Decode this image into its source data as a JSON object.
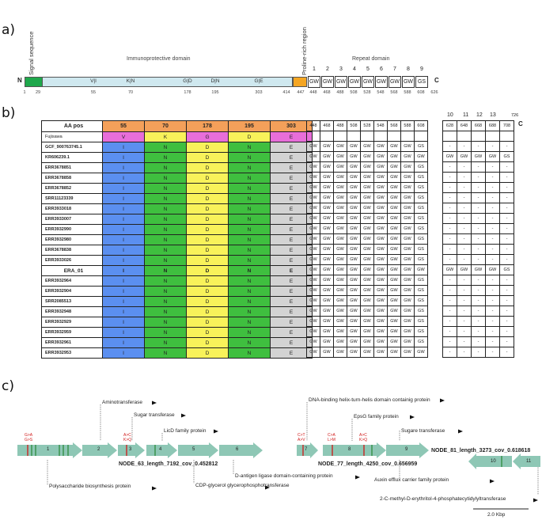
{
  "panel_labels": {
    "a": "a)",
    "b": "b)",
    "c": "c)"
  },
  "domain_map": {
    "n_term": "N",
    "c_term": "C",
    "signal_label": "Signal sequence",
    "immuno_label": "Immunoprotective domain",
    "proline_label": "Proline-rich region",
    "repeat_label": "Repeat domain",
    "variants": [
      "V|I",
      "K|N",
      "G|D",
      "D|N",
      "G|E"
    ],
    "positions": [
      "1",
      "29",
      "55",
      "70",
      "178",
      "195",
      "303",
      "414",
      "447",
      "448",
      "468",
      "488",
      "508",
      "528",
      "548",
      "568",
      "588",
      "608",
      "626"
    ],
    "repeat_numbers": [
      "1",
      "2",
      "3",
      "4",
      "5",
      "6",
      "7",
      "8",
      "9"
    ],
    "repeat_units": [
      "GW",
      "GW",
      "GW",
      "GW",
      "GW",
      "GW",
      "GW",
      "GW",
      "GS"
    ],
    "colors": {
      "signal": "#1fa84c",
      "immuno": "#cfe8ef",
      "proline": "#f5a623"
    }
  },
  "table": {
    "header_label": "AA pos",
    "aa_positions": [
      "55",
      "70",
      "178",
      "195",
      "303"
    ],
    "repeat_positions": [
      "448",
      "468",
      "488",
      "508",
      "528",
      "548",
      "568",
      "588",
      "608"
    ],
    "ext_numbers": [
      "10",
      "11",
      "12",
      "13"
    ],
    "ext_end": "726",
    "c_term": "C",
    "ext_positions": [
      "628",
      "648",
      "668",
      "688",
      "708"
    ],
    "reference": {
      "name": "Fujisawa",
      "residues": [
        "V",
        "K",
        "G",
        "D",
        "E"
      ]
    },
    "rows": [
      {
        "name": "GCF_900763745.1",
        "residues": [
          "I",
          "N",
          "D",
          "N",
          "E"
        ],
        "repeats": [
          "GW",
          "GW",
          "GW",
          "GW",
          "GW",
          "GW",
          "GW",
          "GW",
          "GS"
        ],
        "ext": [
          "-",
          "-",
          "-",
          "-",
          "-"
        ]
      },
      {
        "name": "KR606239.1",
        "residues": [
          "I",
          "N",
          "D",
          "N",
          "E"
        ],
        "repeats": [
          "GW",
          "GW",
          "GW",
          "GW",
          "GW",
          "GW",
          "GW",
          "GW",
          "GW"
        ],
        "ext": [
          "GW",
          "GW",
          "GW",
          "GW",
          "GS"
        ]
      },
      {
        "name": "ERR3678851",
        "residues": [
          "I",
          "N",
          "D",
          "N",
          "E"
        ],
        "repeats": [
          "GW",
          "GW",
          "GW",
          "GW",
          "GW",
          "GW",
          "GW",
          "GW",
          "GS"
        ],
        "ext": [
          "-",
          "-",
          "-",
          "-",
          "-"
        ]
      },
      {
        "name": "ERR3678858",
        "residues": [
          "I",
          "N",
          "D",
          "N",
          "E"
        ],
        "repeats": [
          "GW",
          "GW",
          "GW",
          "GW",
          "GW",
          "GW",
          "GW",
          "GW",
          "GS"
        ],
        "ext": [
          "-",
          "-",
          "-",
          "-",
          "-"
        ]
      },
      {
        "name": "ERR3678852",
        "residues": [
          "I",
          "N",
          "D",
          "N",
          "E"
        ],
        "repeats": [
          "GW",
          "GW",
          "GW",
          "GW",
          "GW",
          "GW",
          "GW",
          "GW",
          "GS"
        ],
        "ext": [
          "-",
          "-",
          "-",
          "-",
          "-"
        ]
      },
      {
        "name": "SRR11123339",
        "residues": [
          "I",
          "N",
          "D",
          "N",
          "E"
        ],
        "repeats": [
          "GW",
          "GW",
          "GW",
          "GW",
          "GW",
          "GW",
          "GW",
          "GW",
          "GS"
        ],
        "ext": [
          "-",
          "-",
          "-",
          "-",
          "-"
        ]
      },
      {
        "name": "ERR3933018",
        "residues": [
          "I",
          "N",
          "D",
          "N",
          "E"
        ],
        "repeats": [
          "GW",
          "GW",
          "GW",
          "GW",
          "GW",
          "GW",
          "GW",
          "GW",
          "GS"
        ],
        "ext": [
          "-",
          "-",
          "-",
          "-",
          "-"
        ]
      },
      {
        "name": "ERR3933007",
        "residues": [
          "I",
          "N",
          "D",
          "N",
          "E"
        ],
        "repeats": [
          "GW",
          "GW",
          "GW",
          "GW",
          "GW",
          "GW",
          "GW",
          "GW",
          "GS"
        ],
        "ext": [
          "-",
          "-",
          "-",
          "-",
          "-"
        ]
      },
      {
        "name": "ERR3932990",
        "residues": [
          "I",
          "N",
          "D",
          "N",
          "E"
        ],
        "repeats": [
          "GW",
          "GW",
          "GW",
          "GW",
          "GW",
          "GW",
          "GW",
          "GW",
          "GS"
        ],
        "ext": [
          "-",
          "-",
          "-",
          "-",
          "-"
        ]
      },
      {
        "name": "ERR3932980",
        "residues": [
          "I",
          "N",
          "D",
          "N",
          "E"
        ],
        "repeats": [
          "GW",
          "GW",
          "GW",
          "GW",
          "GW",
          "GW",
          "GW",
          "GW",
          "GS"
        ],
        "ext": [
          "-",
          "-",
          "-",
          "-",
          "-"
        ]
      },
      {
        "name": "ERR3678838",
        "residues": [
          "I",
          "N",
          "D",
          "N",
          "E"
        ],
        "repeats": [
          "GW",
          "GW",
          "GW",
          "GW",
          "GW",
          "GW",
          "GW",
          "GW",
          "GS"
        ],
        "ext": [
          "-",
          "-",
          "-",
          "-",
          "-"
        ]
      },
      {
        "name": "ERR3933026",
        "residues": [
          "I",
          "N",
          "D",
          "N",
          "E"
        ],
        "repeats": [
          "GW",
          "GW",
          "GW",
          "GW",
          "GW",
          "GW",
          "GW",
          "GW",
          "GS"
        ],
        "ext": [
          "-",
          "-",
          "-",
          "-",
          "-"
        ]
      },
      {
        "name": "ERA_01",
        "residues": [
          "I",
          "N",
          "D",
          "N",
          "E"
        ],
        "repeats": [
          "GW",
          "GW",
          "GW",
          "GW",
          "GW",
          "GW",
          "GW",
          "GW",
          "GW"
        ],
        "ext": [
          "GW",
          "GW",
          "GW",
          "GW",
          "GS"
        ],
        "bold": true
      },
      {
        "name": "ERR3932964",
        "residues": [
          "I",
          "N",
          "D",
          "N",
          "E"
        ],
        "repeats": [
          "GW",
          "GW",
          "GW",
          "GW",
          "GW",
          "GW",
          "GW",
          "GW",
          "GS"
        ],
        "ext": [
          "-",
          "-",
          "-",
          "-",
          "-"
        ]
      },
      {
        "name": "ERR3932904",
        "residues": [
          "I",
          "N",
          "D",
          "N",
          "E"
        ],
        "repeats": [
          "GW",
          "GW",
          "GW",
          "GW",
          "GW",
          "GW",
          "GW",
          "GW",
          "GS"
        ],
        "ext": [
          "-",
          "-",
          "-",
          "-",
          "-"
        ]
      },
      {
        "name": "SRR2085513",
        "residues": [
          "I",
          "N",
          "D",
          "N",
          "E"
        ],
        "repeats": [
          "GW",
          "GW",
          "GW",
          "GW",
          "GW",
          "GW",
          "GW",
          "GW",
          "GS"
        ],
        "ext": [
          "-",
          "-",
          "-",
          "-",
          "-"
        ]
      },
      {
        "name": "ERR3932948",
        "residues": [
          "I",
          "N",
          "D",
          "N",
          "E"
        ],
        "repeats": [
          "GW",
          "GW",
          "GW",
          "GW",
          "GW",
          "GW",
          "GW",
          "GW",
          "GS"
        ],
        "ext": [
          "-",
          "-",
          "-",
          "-",
          "-"
        ]
      },
      {
        "name": "ERR3932929",
        "residues": [
          "I",
          "N",
          "D",
          "N",
          "E"
        ],
        "repeats": [
          "GW",
          "GW",
          "GW",
          "GW",
          "GW",
          "GW",
          "GW",
          "GW",
          "GS"
        ],
        "ext": [
          "-",
          "-",
          "-",
          "-",
          "-"
        ]
      },
      {
        "name": "ERR3932959",
        "residues": [
          "I",
          "N",
          "D",
          "N",
          "E"
        ],
        "repeats": [
          "GW",
          "GW",
          "GW",
          "GW",
          "GW",
          "GW",
          "GW",
          "GW",
          "GS"
        ],
        "ext": [
          "-",
          "-",
          "-",
          "-",
          "-"
        ]
      },
      {
        "name": "ERR3932961",
        "residues": [
          "I",
          "N",
          "D",
          "N",
          "E"
        ],
        "repeats": [
          "GW",
          "GW",
          "GW",
          "GW",
          "GW",
          "GW",
          "GW",
          "GW",
          "GS"
        ],
        "ext": [
          "-",
          "-",
          "-",
          "-",
          "-"
        ]
      },
      {
        "name": "ERR3932953",
        "residues": [
          "I",
          "N",
          "D",
          "N",
          "E"
        ],
        "repeats": [
          "GW",
          "GW",
          "GW",
          "GW",
          "GW",
          "GW",
          "GW",
          "GW",
          "GW"
        ],
        "ext": [
          "-",
          "-",
          "-",
          "-",
          "-"
        ]
      }
    ],
    "colors": {
      "header": "#f4a05a",
      "col55": "#5b8ff0",
      "col70": "#3fbf3f",
      "col178": "#f8f25a",
      "col195": "#3fbf3f",
      "col303": "#d3d3d3",
      "ref": "#e86ed9"
    }
  },
  "genomic": {
    "nodes": [
      "NODE_63_length_7192_cov_0.452812",
      "NODE_77_length_4250_cov_0.656959",
      "NODE_81_length_3273_cov_0.618618"
    ],
    "gene_numbers": [
      "1",
      "2",
      "3",
      "4",
      "5",
      "6",
      "7",
      "8",
      "9",
      "10",
      "11"
    ],
    "annotations": {
      "aminotransferase": "Aminotransferase",
      "sugar_transferase_1": "Sugar transferase",
      "licd": "LicD family protein",
      "polysaccharide": "Polysaccharide biosynthesis protein",
      "cdp_glycerol": "CDP-glycerol glycerophosphotransferase",
      "d_antigen": "D-antigen ligase domain-containing protein",
      "dna_binding": "DNA-binding helix-turn-helis domain containig protein",
      "epsg": "EpsG family protein",
      "sugare": "Sugare transferase",
      "auxin": "Auxin efflux carrier family protein",
      "methyl": "2-C-methyl-D-erythritol-4-phosphatecytidylyltransferase"
    },
    "snps": {
      "g1": [
        "G>A",
        "G>S"
      ],
      "g3": [
        "A>C",
        "K>Q"
      ],
      "g7": [
        "C>T",
        "A>V"
      ],
      "g8": [
        "C>A",
        "L>M"
      ],
      "g8b": [
        "A>C",
        "K>Q"
      ]
    },
    "scale_bar": "2.0 Kbp",
    "gene_color": "#8ec7b5"
  }
}
